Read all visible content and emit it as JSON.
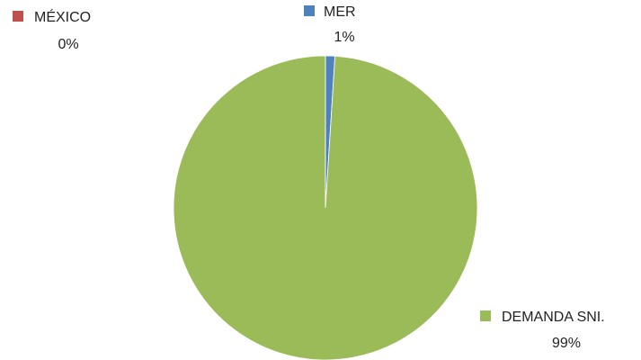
{
  "chart_data": {
    "type": "pie",
    "categories": [
      "MER",
      "DEMANDA SNI.",
      "MÉXICO"
    ],
    "values": [
      1,
      99,
      0
    ],
    "value_labels": [
      "1%",
      "99%",
      "0%"
    ],
    "colors": [
      "#4f81bd",
      "#9bbb59",
      "#c0504d"
    ]
  }
}
